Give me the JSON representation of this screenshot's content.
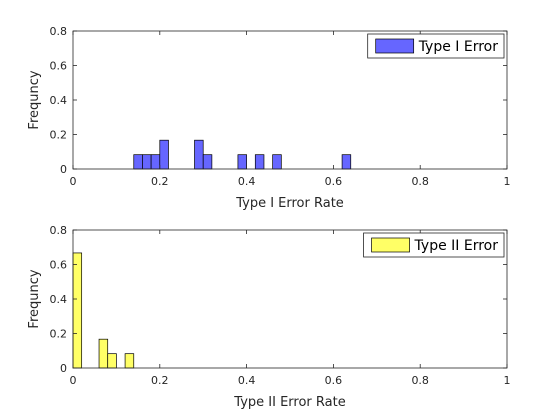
{
  "chart_data": [
    {
      "type": "bar",
      "subtype": "histogram",
      "xlabel": "Type I Error Rate",
      "ylabel": "Frequncy",
      "xlim": [
        0,
        1
      ],
      "ylim": [
        0,
        0.8
      ],
      "xticks": [
        "0",
        "0.2",
        "0.4",
        "0.6",
        "0.8",
        "1"
      ],
      "yticks": [
        "0",
        "0.2",
        "0.4",
        "0.6",
        "0.8"
      ],
      "bin_width": 0.02,
      "legend": {
        "label": "Type I Error",
        "placement": "top-right"
      },
      "color": "#6666ff",
      "bins": [
        {
          "x0": 0.14,
          "value": 0.083
        },
        {
          "x0": 0.16,
          "value": 0.083
        },
        {
          "x0": 0.18,
          "value": 0.083
        },
        {
          "x0": 0.2,
          "value": 0.167
        },
        {
          "x0": 0.28,
          "value": 0.167
        },
        {
          "x0": 0.3,
          "value": 0.083
        },
        {
          "x0": 0.38,
          "value": 0.083
        },
        {
          "x0": 0.42,
          "value": 0.083
        },
        {
          "x0": 0.46,
          "value": 0.083
        },
        {
          "x0": 0.62,
          "value": 0.083
        }
      ]
    },
    {
      "type": "bar",
      "subtype": "histogram",
      "xlabel": "Type II Error Rate",
      "ylabel": "Frequncy",
      "xlim": [
        0,
        1
      ],
      "ylim": [
        0,
        0.8
      ],
      "xticks": [
        "0",
        "0.2",
        "0.4",
        "0.6",
        "0.8",
        "1"
      ],
      "yticks": [
        "0",
        "0.2",
        "0.4",
        "0.6",
        "0.8"
      ],
      "bin_width": 0.02,
      "legend": {
        "label": "Type II Error",
        "placement": "top-right"
      },
      "color": "#ffff66",
      "bins": [
        {
          "x0": 0.0,
          "value": 0.667
        },
        {
          "x0": 0.06,
          "value": 0.167
        },
        {
          "x0": 0.08,
          "value": 0.083
        },
        {
          "x0": 0.12,
          "value": 0.083
        }
      ]
    }
  ]
}
